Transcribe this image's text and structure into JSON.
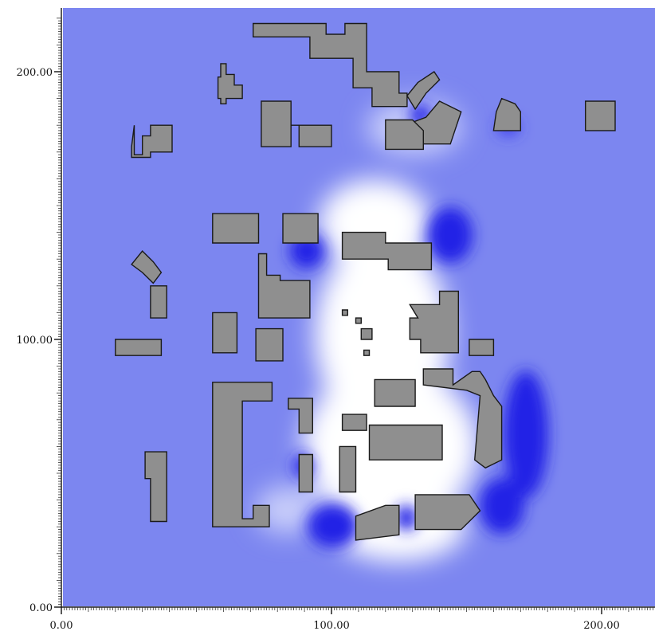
{
  "chart_data": {
    "type": "heatmap",
    "title": "",
    "xlabel": "",
    "ylabel": "",
    "xlim": [
      0,
      220
    ],
    "ylim": [
      0,
      220
    ],
    "x_ticks": [
      {
        "value": 0,
        "label": "0.00"
      },
      {
        "value": 100,
        "label": "100.00"
      },
      {
        "value": 200,
        "label": "200.00"
      }
    ],
    "y_ticks": [
      {
        "value": 0,
        "label": "0.00"
      },
      {
        "value": 100,
        "label": "100.00"
      },
      {
        "value": 200,
        "label": "200.00"
      }
    ],
    "grid": false,
    "legend": "none",
    "colors": {
      "background_field": "#7c86f0",
      "low_field": "#2424e6",
      "high_field": "#ffffff",
      "building_fill": "#8f8f8f",
      "building_outline": "#1a1a1a"
    },
    "buildings": [
      {
        "name": "building-01",
        "points": [
          [
            71,
            213
          ],
          [
            71,
            218
          ],
          [
            98,
            218
          ],
          [
            98,
            214
          ],
          [
            105,
            214
          ],
          [
            105,
            218
          ],
          [
            113,
            218
          ],
          [
            113,
            200
          ],
          [
            125,
            200
          ],
          [
            125,
            192
          ],
          [
            128,
            192
          ],
          [
            128,
            187
          ],
          [
            115,
            187
          ],
          [
            115,
            194
          ],
          [
            108,
            194
          ],
          [
            108,
            205
          ],
          [
            92,
            205
          ],
          [
            92,
            213
          ]
        ]
      },
      {
        "name": "building-02",
        "points": [
          [
            59,
            198
          ],
          [
            59,
            203
          ],
          [
            61,
            203
          ],
          [
            61,
            199
          ],
          [
            64,
            199
          ],
          [
            64,
            195
          ],
          [
            67,
            195
          ],
          [
            67,
            190
          ],
          [
            61,
            190
          ],
          [
            61,
            188
          ],
          [
            59,
            188
          ],
          [
            59,
            190
          ],
          [
            58,
            190
          ],
          [
            58,
            198
          ]
        ]
      },
      {
        "name": "building-03",
        "points": [
          [
            132,
            196
          ],
          [
            138,
            200
          ],
          [
            140,
            197
          ],
          [
            135,
            192
          ],
          [
            131,
            186
          ],
          [
            128,
            191
          ]
        ]
      },
      {
        "name": "building-04",
        "points": [
          [
            135,
            183
          ],
          [
            140,
            189
          ],
          [
            148,
            185
          ],
          [
            144,
            173
          ],
          [
            131,
            173
          ],
          [
            127,
            180
          ]
        ]
      },
      {
        "name": "building-05",
        "points": [
          [
            74,
            189
          ],
          [
            74,
            172
          ],
          [
            85,
            172
          ],
          [
            85,
            180
          ],
          [
            88,
            180
          ],
          [
            88,
            172
          ],
          [
            100,
            172
          ],
          [
            100,
            180
          ],
          [
            85,
            180
          ],
          [
            85,
            189
          ]
        ]
      },
      {
        "name": "building-06",
        "points": [
          [
            120,
            182
          ],
          [
            130,
            182
          ],
          [
            134,
            178
          ],
          [
            134,
            171
          ],
          [
            120,
            171
          ]
        ]
      },
      {
        "name": "building-07",
        "points": [
          [
            163,
            190
          ],
          [
            168,
            188
          ],
          [
            170,
            185
          ],
          [
            170,
            178
          ],
          [
            160,
            178
          ],
          [
            161,
            185
          ]
        ]
      },
      {
        "name": "building-08",
        "points": [
          [
            194,
            189
          ],
          [
            205,
            189
          ],
          [
            205,
            178
          ],
          [
            194,
            178
          ]
        ]
      },
      {
        "name": "building-09",
        "points": [
          [
            27,
            180
          ],
          [
            27,
            169
          ],
          [
            30,
            169
          ],
          [
            30,
            176
          ],
          [
            33,
            176
          ],
          [
            33,
            180
          ],
          [
            41,
            180
          ],
          [
            41,
            170
          ],
          [
            33,
            170
          ],
          [
            33,
            168
          ],
          [
            26,
            168
          ],
          [
            26,
            172
          ]
        ]
      },
      {
        "name": "building-10",
        "points": [
          [
            56,
            147
          ],
          [
            73,
            147
          ],
          [
            73,
            136
          ],
          [
            56,
            136
          ]
        ]
      },
      {
        "name": "building-11",
        "points": [
          [
            82,
            147
          ],
          [
            95,
            147
          ],
          [
            95,
            136
          ],
          [
            82,
            136
          ]
        ]
      },
      {
        "name": "building-12",
        "points": [
          [
            104,
            140
          ],
          [
            120,
            140
          ],
          [
            120,
            136
          ],
          [
            137,
            136
          ],
          [
            137,
            126
          ],
          [
            121,
            126
          ],
          [
            121,
            130
          ],
          [
            104,
            130
          ]
        ]
      },
      {
        "name": "building-13",
        "points": [
          [
            30,
            133
          ],
          [
            34,
            129
          ],
          [
            37,
            125
          ],
          [
            34,
            121
          ],
          [
            30,
            125
          ],
          [
            26,
            128
          ]
        ]
      },
      {
        "name": "building-14",
        "points": [
          [
            33,
            120
          ],
          [
            39,
            120
          ],
          [
            39,
            108
          ],
          [
            33,
            108
          ]
        ]
      },
      {
        "name": "building-15",
        "points": [
          [
            73,
            132
          ],
          [
            76,
            132
          ],
          [
            76,
            124
          ],
          [
            81,
            124
          ],
          [
            81,
            122
          ],
          [
            92,
            122
          ],
          [
            92,
            108
          ],
          [
            73,
            108
          ]
        ]
      },
      {
        "name": "building-16",
        "points": [
          [
            56,
            110
          ],
          [
            65,
            110
          ],
          [
            65,
            95
          ],
          [
            56,
            95
          ]
        ]
      },
      {
        "name": "building-17",
        "points": [
          [
            72,
            104
          ],
          [
            82,
            104
          ],
          [
            82,
            92
          ],
          [
            72,
            92
          ]
        ]
      },
      {
        "name": "building-18",
        "points": [
          [
            20,
            100
          ],
          [
            37,
            100
          ],
          [
            37,
            94
          ],
          [
            20,
            94
          ]
        ]
      },
      {
        "name": "building-19",
        "points": [
          [
            129,
            113
          ],
          [
            140,
            113
          ],
          [
            140,
            118
          ],
          [
            147,
            118
          ],
          [
            147,
            95
          ],
          [
            133,
            95
          ],
          [
            133,
            100
          ],
          [
            129,
            100
          ],
          [
            129,
            108
          ],
          [
            132,
            108
          ]
        ]
      },
      {
        "name": "building-20",
        "points": [
          [
            151,
            100
          ],
          [
            160,
            100
          ],
          [
            160,
            94
          ],
          [
            151,
            94
          ]
        ]
      },
      {
        "name": "building-21",
        "points": [
          [
            134,
            89
          ],
          [
            145,
            89
          ],
          [
            145,
            83
          ],
          [
            152,
            88
          ],
          [
            155,
            88
          ],
          [
            157,
            85
          ],
          [
            160,
            79
          ],
          [
            163,
            75
          ],
          [
            163,
            55
          ],
          [
            157,
            52
          ],
          [
            153,
            55
          ],
          [
            155,
            79
          ],
          [
            150,
            81
          ],
          [
            134,
            83
          ]
        ]
      },
      {
        "name": "building-22",
        "points": [
          [
            116,
            85
          ],
          [
            131,
            85
          ],
          [
            131,
            75
          ],
          [
            116,
            75
          ]
        ]
      },
      {
        "name": "building-23",
        "points": [
          [
            56,
            84
          ],
          [
            78,
            84
          ],
          [
            78,
            77
          ],
          [
            67,
            77
          ],
          [
            67,
            33
          ],
          [
            71,
            33
          ],
          [
            71,
            38
          ],
          [
            77,
            38
          ],
          [
            77,
            30
          ],
          [
            56,
            30
          ]
        ]
      },
      {
        "name": "building-24",
        "points": [
          [
            84,
            78
          ],
          [
            93,
            78
          ],
          [
            93,
            65
          ],
          [
            88,
            65
          ],
          [
            88,
            74
          ],
          [
            84,
            74
          ]
        ]
      },
      {
        "name": "building-25",
        "points": [
          [
            104,
            72
          ],
          [
            113,
            72
          ],
          [
            113,
            66
          ],
          [
            104,
            66
          ]
        ]
      },
      {
        "name": "building-26",
        "points": [
          [
            114,
            68
          ],
          [
            141,
            68
          ],
          [
            141,
            55
          ],
          [
            114,
            55
          ]
        ]
      },
      {
        "name": "building-27",
        "points": [
          [
            31,
            58
          ],
          [
            39,
            58
          ],
          [
            39,
            32
          ],
          [
            33,
            32
          ],
          [
            33,
            48
          ],
          [
            31,
            48
          ]
        ]
      },
      {
        "name": "building-28",
        "points": [
          [
            88,
            57
          ],
          [
            93,
            57
          ],
          [
            93,
            43
          ],
          [
            88,
            43
          ]
        ]
      },
      {
        "name": "building-29",
        "points": [
          [
            103,
            60
          ],
          [
            109,
            60
          ],
          [
            109,
            43
          ],
          [
            103,
            43
          ]
        ]
      },
      {
        "name": "building-30",
        "points": [
          [
            109,
            34
          ],
          [
            120,
            38
          ],
          [
            125,
            38
          ],
          [
            125,
            27
          ],
          [
            109,
            25
          ]
        ]
      },
      {
        "name": "building-31",
        "points": [
          [
            131,
            42
          ],
          [
            151,
            42
          ],
          [
            155,
            36
          ],
          [
            148,
            29
          ],
          [
            131,
            29
          ]
        ]
      },
      {
        "name": "building-32",
        "points": [
          [
            104,
            111
          ],
          [
            106,
            111
          ],
          [
            106,
            109
          ],
          [
            104,
            109
          ]
        ]
      },
      {
        "name": "building-33",
        "points": [
          [
            109,
            108
          ],
          [
            111,
            108
          ],
          [
            111,
            106
          ],
          [
            109,
            106
          ]
        ]
      },
      {
        "name": "building-34",
        "points": [
          [
            111,
            104
          ],
          [
            115,
            104
          ],
          [
            115,
            100
          ],
          [
            111,
            100
          ]
        ]
      },
      {
        "name": "building-35",
        "points": [
          [
            112,
            96
          ],
          [
            114,
            96
          ],
          [
            114,
            94
          ],
          [
            112,
            94
          ]
        ]
      }
    ]
  }
}
